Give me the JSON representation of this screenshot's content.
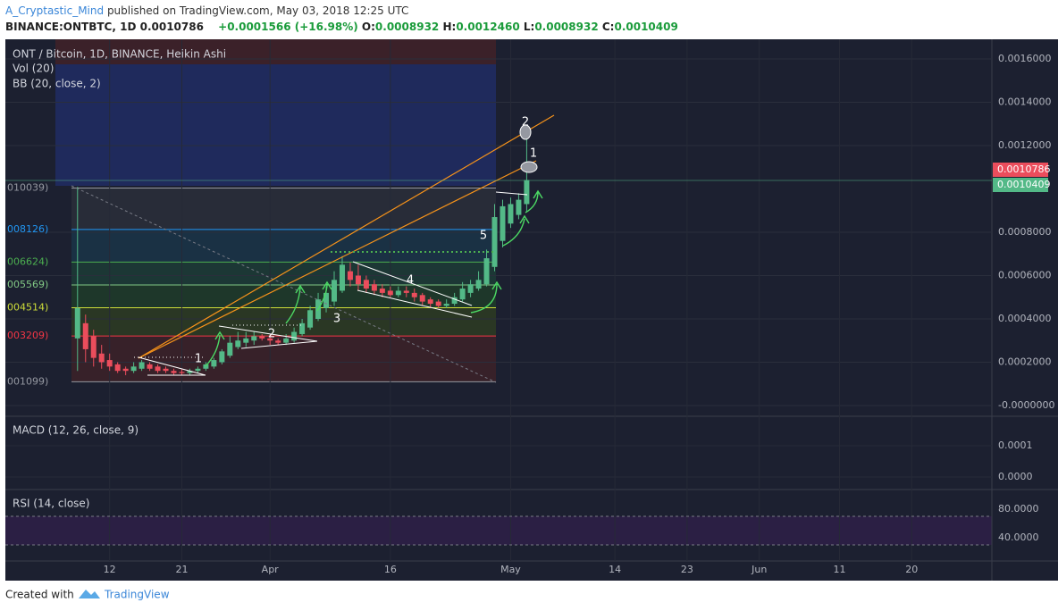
{
  "header": {
    "author": "A_Cryptastic_Mind",
    "published": "published on TradingView.com, May 03, 2018 12:25 UTC",
    "symbol": "BINANCE:ONTBTC, 1D",
    "last": "0.0010786",
    "change": "+0.0001566 (+16.98%)",
    "o_label": "O:",
    "open": "0.0008932",
    "h_label": "H:",
    "high": "0.0012460",
    "l_label": "L:",
    "low": "0.0008932",
    "c_label": "C:",
    "close": "0.0010409"
  },
  "chart_data": {
    "type": "candlestick",
    "title": "ONT / Bitcoin, 1D, BINANCE, Heikin Ashi",
    "indicators": [
      "Vol (20)",
      "BB (20, close, 2)"
    ],
    "x": [
      "Mar 08",
      "Mar 09",
      "Mar 10",
      "Mar 11",
      "Mar 12",
      "Mar 13",
      "Mar 14",
      "Mar 15",
      "Mar 16",
      "Mar 17",
      "Mar 18",
      "Mar 19",
      "Mar 20",
      "Mar 21",
      "Mar 22",
      "Mar 23",
      "Mar 24",
      "Mar 25",
      "Mar 26",
      "Mar 27",
      "Mar 28",
      "Mar 29",
      "Mar 30",
      "Mar 31",
      "Apr 01",
      "Apr 02",
      "Apr 03",
      "Apr 04",
      "Apr 05",
      "Apr 06",
      "Apr 07",
      "Apr 08",
      "Apr 09",
      "Apr 10",
      "Apr 11",
      "Apr 12",
      "Apr 13",
      "Apr 14",
      "Apr 15",
      "Apr 16",
      "Apr 17",
      "Apr 18",
      "Apr 19",
      "Apr 20",
      "Apr 21",
      "Apr 22",
      "Apr 23",
      "Apr 24",
      "Apr 25",
      "Apr 26",
      "Apr 27",
      "Apr 28",
      "Apr 29",
      "Apr 30",
      "May 01",
      "May 02",
      "May 03"
    ],
    "open": [
      0.00031,
      0.00038,
      0.00032,
      0.00024,
      0.00021,
      0.00019,
      0.00017,
      0.00016,
      0.00017,
      0.00019,
      0.00018,
      0.00017,
      0.00016,
      0.000155,
      0.00015,
      0.00016,
      0.00017,
      0.00018,
      0.0002,
      0.00023,
      0.00027,
      0.00029,
      0.0003,
      0.00032,
      0.00031,
      0.0003,
      0.00029,
      0.0003,
      0.00033,
      0.00036,
      0.0004,
      0.00045,
      0.00048,
      0.00053,
      0.00062,
      0.0006,
      0.00058,
      0.00056,
      0.00054,
      0.00053,
      0.00051,
      0.00053,
      0.00052,
      0.00051,
      0.00049,
      0.00048,
      0.00046,
      0.00047,
      0.00049,
      0.00052,
      0.00054,
      0.00056,
      0.00064,
      0.00076,
      0.00084,
      0.00088,
      0.00093
    ],
    "high": [
      0.00101,
      0.00042,
      0.00035,
      0.00028,
      0.00024,
      0.0002,
      0.00018,
      0.0002,
      0.00021,
      0.0002,
      0.00019,
      0.00018,
      0.00017,
      0.00017,
      0.00017,
      0.00018,
      0.0002,
      0.00022,
      0.00026,
      0.00032,
      0.00034,
      0.00034,
      0.00034,
      0.00033,
      0.00033,
      0.00031,
      0.00033,
      0.00036,
      0.0004,
      0.00046,
      0.00052,
      0.00055,
      0.00062,
      0.00069,
      0.00066,
      0.00065,
      0.0006,
      0.00058,
      0.00056,
      0.00055,
      0.00055,
      0.00055,
      0.00054,
      0.00052,
      0.0005,
      0.00049,
      0.00049,
      0.00052,
      0.00057,
      0.00058,
      0.00062,
      0.00072,
      0.00093,
      0.00095,
      0.00096,
      0.00098,
      0.001246
    ],
    "low": [
      0.00016,
      0.0002,
      0.00018,
      0.00017,
      0.00016,
      0.00015,
      0.00014,
      0.00015,
      0.00016,
      0.00016,
      0.00015,
      0.00015,
      0.00014,
      0.00014,
      0.00014,
      0.00015,
      0.00016,
      0.00017,
      0.00019,
      0.00022,
      0.00026,
      0.00027,
      0.00028,
      0.0003,
      0.00028,
      0.00028,
      0.00028,
      0.00029,
      0.00032,
      0.00035,
      0.00039,
      0.00043,
      0.00046,
      0.00052,
      0.00055,
      0.00053,
      0.00052,
      0.00051,
      0.0005,
      0.0005,
      0.0005,
      0.0005,
      0.00048,
      0.00046,
      0.00045,
      0.00045,
      0.00045,
      0.00046,
      0.00048,
      0.0005,
      0.00053,
      0.00055,
      0.00062,
      0.00073,
      0.00082,
      0.00086,
      0.0008932
    ],
    "close": [
      0.00045,
      0.00026,
      0.00022,
      0.0002,
      0.00018,
      0.00016,
      0.00016,
      0.00018,
      0.0002,
      0.00017,
      0.00016,
      0.00016,
      0.00015,
      0.00015,
      0.00016,
      0.00017,
      0.00019,
      0.00021,
      0.00025,
      0.00029,
      0.0003,
      0.00031,
      0.00032,
      0.00031,
      0.0003,
      0.00029,
      0.00031,
      0.00034,
      0.00038,
      0.00044,
      0.00049,
      0.00052,
      0.00058,
      0.00065,
      0.00058,
      0.00056,
      0.00054,
      0.00053,
      0.00052,
      0.00051,
      0.00053,
      0.00052,
      0.0005,
      0.00048,
      0.00047,
      0.00046,
      0.00047,
      0.0005,
      0.00054,
      0.00056,
      0.00058,
      0.00068,
      0.00087,
      0.00092,
      0.00093,
      0.00095,
      0.0010409
    ],
    "up_color": "#53b987",
    "down_color": "#eb4d5c",
    "xlim": [
      "Feb 27",
      "Jun 30"
    ],
    "xticks": [
      {
        "value": "Mar 12",
        "label": "12"
      },
      {
        "value": "Mar 21",
        "label": "21"
      },
      {
        "value": "Apr 01",
        "label": "Apr"
      },
      {
        "value": "Apr 16",
        "label": "16"
      },
      {
        "value": "May 01",
        "label": "May"
      },
      {
        "value": "May 14",
        "label": "14"
      },
      {
        "value": "May 23",
        "label": "23"
      },
      {
        "value": "Jun 01",
        "label": "Jun"
      },
      {
        "value": "Jun 11",
        "label": "11"
      },
      {
        "value": "Jun 20",
        "label": "20"
      }
    ],
    "ylim": [
      -4.54e-05,
      0.0016907
    ],
    "yticks": [
      {
        "value": 0.0016,
        "label": "0.0016000"
      },
      {
        "value": 0.0014,
        "label": "0.0014000"
      },
      {
        "value": 0.0012,
        "label": "0.0012000"
      },
      {
        "value": 0.0008,
        "label": "0.0008000"
      },
      {
        "value": 0.0006,
        "label": "0.0006000"
      },
      {
        "value": 0.0004,
        "label": "0.0004000"
      },
      {
        "value": 0.0002,
        "label": "0.0002000"
      },
      {
        "value": 0,
        "label": "-0.0000000"
      }
    ],
    "fib_levels": [
      {
        "value": 0.0010039,
        "label": "010039)",
        "color": "#9598a1"
      },
      {
        "value": 0.0008126,
        "label": "008126)",
        "color": "#2196f3"
      },
      {
        "value": 0.0006624,
        "label": "006624)",
        "color": "#4caf50"
      },
      {
        "value": 0.0005569,
        "label": "005569)",
        "color": "#81c784"
      },
      {
        "value": 0.0004514,
        "label": "004514)",
        "color": "#cddc39"
      },
      {
        "value": 0.0003209,
        "label": "003209)",
        "color": "#f23645"
      },
      {
        "value": 0.0001099,
        "label": "001099)",
        "color": "#9598a1"
      }
    ],
    "grid": true
  },
  "macd": {
    "title": "MACD (12, 26, close, 9)",
    "ylim": [
      -3.7e-05,
      0.000194
    ],
    "yticks": [
      {
        "value": 0.0001,
        "label": "0.0001"
      },
      {
        "value": 0,
        "label": "0.0000"
      }
    ]
  },
  "rsi": {
    "title": "RSI (14, close)",
    "ylim": [
      7.5,
      107.5
    ],
    "band": [
      30,
      70
    ],
    "yticks": [
      {
        "value": 80,
        "label": "80.0000"
      },
      {
        "value": 40,
        "label": "40.0000"
      }
    ]
  },
  "annotations": [
    "1",
    "2",
    "3",
    "4",
    "5",
    "2",
    "1"
  ],
  "footer": {
    "created": "Created with",
    "brand": "TradingView"
  }
}
